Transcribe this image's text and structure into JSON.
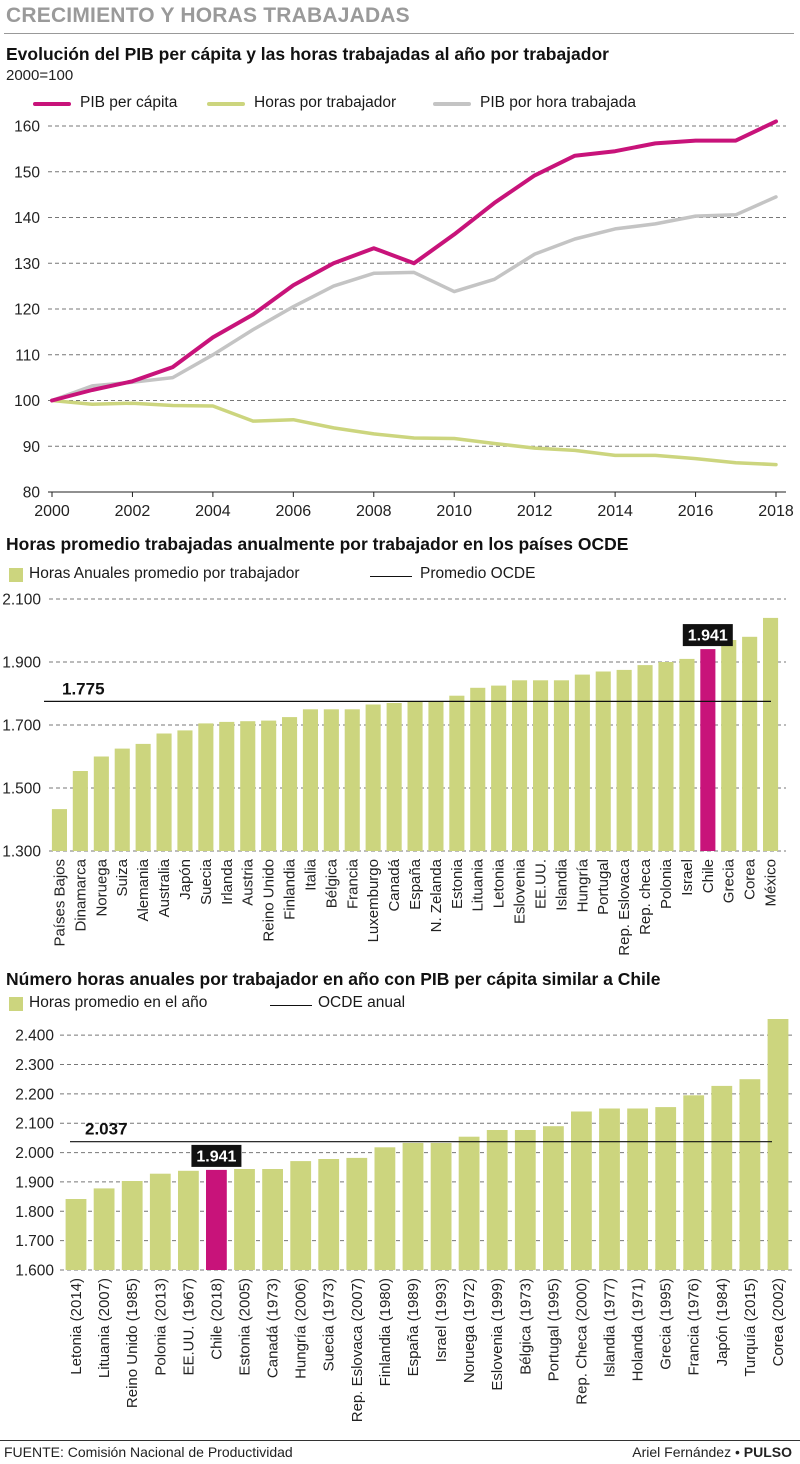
{
  "header": {
    "title": "CRECIMIENTO Y HORAS TRABAJADAS"
  },
  "chart1": {
    "title": "Evolución del PIB per cápita y las horas trabajadas al año por trabajador",
    "subtitle": "2000=100"
  },
  "chart2": {
    "title": "Horas promedio trabajadas anualmente por trabajador en los países OCDE"
  },
  "chart3": {
    "title": "Número horas anuales por trabajador en año con PIB per cápita similar a Chile"
  },
  "footer": {
    "source": "FUENTE: Comisión Nacional de  Productividad",
    "author": "Ariel Fernández",
    "separator": "•",
    "outlet": "PULSO"
  },
  "colors": {
    "magenta": "#c8137a",
    "lime": "#ccd57e",
    "grey": "#c4c4c4"
  },
  "chart_data": [
    {
      "type": "line",
      "x": [
        2000,
        2001,
        2002,
        2003,
        2004,
        2005,
        2006,
        2007,
        2008,
        2009,
        2010,
        2011,
        2012,
        2013,
        2014,
        2015,
        2016,
        2017,
        2018
      ],
      "xticks": [
        "2000",
        "2002",
        "2004",
        "2006",
        "2008",
        "2010",
        "2012",
        "2014",
        "2016",
        "2018"
      ],
      "yticks": [
        "80",
        "90",
        "100",
        "110",
        "120",
        "130",
        "140",
        "150",
        "160"
      ],
      "ylim": [
        80,
        163
      ],
      "grid": "horizontal dashed",
      "legend_position": "top",
      "series": [
        {
          "name": "PIB per cápita",
          "color": "#c8137a",
          "values": [
            100,
            102.3,
            104.2,
            107.3,
            113.8,
            118.8,
            125.2,
            130,
            133.3,
            130,
            136.3,
            143.2,
            149.2,
            153.5,
            154.5,
            156.2,
            156.8,
            156.8,
            161
          ]
        },
        {
          "name": "Horas por trabajador",
          "color": "#ccd57e",
          "values": [
            100,
            99.2,
            99.4,
            98.9,
            98.8,
            95.5,
            95.8,
            94,
            92.7,
            91.8,
            91.7,
            90.6,
            89.6,
            89.1,
            88,
            88,
            87.3,
            86.4,
            86
          ]
        },
        {
          "name": "PIB por hora trabajada",
          "color": "#c4c4c4",
          "values": [
            100,
            103.2,
            104,
            105,
            110,
            115.5,
            120.5,
            125,
            127.8,
            128,
            123.8,
            126.5,
            132,
            135.3,
            137.5,
            138.6,
            140.3,
            140.6,
            144.5
          ]
        }
      ]
    },
    {
      "type": "bar",
      "legend": {
        "bars": "Horas Anuales promedio por trabajador",
        "line": "Promedio OCDE"
      },
      "categories": [
        "Países Bajos",
        "Dinamarca",
        "Noruega",
        "Suiza",
        "Alemania",
        "Australia",
        "Japón",
        "Suecia",
        "Irlanda",
        "Austria",
        "Reino Unido",
        "Finlandia",
        "Italia",
        "Bélgica",
        "Francia",
        "Luxemburgo",
        "Canadá",
        "España",
        "N. Zelanda",
        "Estonia",
        "Lituania",
        "Letonia",
        "Eslovenia",
        "EE.UU.",
        "Islandia",
        "Hungría",
        "Portugal",
        "Rep. Eslovaca",
        "Rep. checa",
        "Polonia",
        "Israel",
        "Chile",
        "Grecia",
        "Corea",
        "México"
      ],
      "values": [
        1433,
        1554,
        1600,
        1625,
        1640,
        1673,
        1683,
        1705,
        1710,
        1712,
        1714,
        1725,
        1750,
        1750,
        1750,
        1765,
        1770,
        1773,
        1775,
        1793,
        1818,
        1825,
        1842,
        1842,
        1842,
        1860,
        1870,
        1875,
        1890,
        1900,
        1910,
        1941,
        1970,
        1980,
        2040
      ],
      "highlight": "Chile",
      "highlight_label": "1.941",
      "reference_line": {
        "label": "1.775",
        "value": 1775
      },
      "yticks": [
        "1.300",
        "1.500",
        "1.700",
        "1.900",
        "2.100"
      ],
      "ylim": [
        1300,
        2100
      ],
      "grid": "horizontal dashed",
      "legend_position": "top-left"
    },
    {
      "type": "bar",
      "legend": {
        "bars": "Horas promedio en el año",
        "line": "OCDE anual"
      },
      "categories": [
        "Letonia (2014)",
        "Lituania (2007)",
        "Reino Unido (1985)",
        "Polonia (2013)",
        "EE.UU. (1967)",
        "Chile (2018)",
        "Estonia (2005)",
        "Canadá (1973)",
        "Hungría (2006)",
        "Suecia (1973)",
        "Rep. Eslovaca (2007)",
        "Finlandia (1980)",
        "España (1989)",
        "Israel (1993)",
        "Noruega (1972)",
        "Eslovenia (1999)",
        "Bélgica (1973)",
        "Portugal (1995)",
        "Rep. Checa (2000)",
        "Islandia (1977)",
        "Holanda (1971)",
        "Grecia (1995)",
        "Francia (1976)",
        "Japón (1984)",
        "Turquía (2015)",
        "Corea (2002)"
      ],
      "values": [
        1842,
        1878,
        1903,
        1928,
        1938,
        1941,
        1944,
        1944,
        1971,
        1978,
        1982,
        2018,
        2033,
        2033,
        2054,
        2077,
        2077,
        2090,
        2140,
        2150,
        2150,
        2155,
        2195,
        2227,
        2250,
        2455
      ],
      "highlight": "Chile (2018)",
      "highlight_label": "1.941",
      "reference_line": {
        "label": "2.037",
        "value": 2037
      },
      "yticks": [
        "1.600",
        "1.700",
        "1.800",
        "1.900",
        "2.000",
        "2.100",
        "2.200",
        "2.300",
        "2.400"
      ],
      "ylim": [
        1600,
        2455
      ],
      "grid": "horizontal dashed",
      "legend_position": "top-left"
    }
  ]
}
